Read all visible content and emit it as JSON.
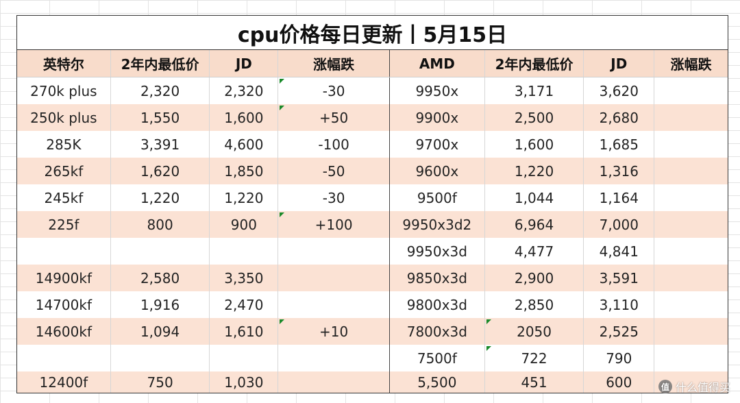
{
  "title": "cpu价格每日更新丨5月15日",
  "headers": [
    "英特尔",
    "2年内最低价",
    "JD",
    "涨幅跌",
    "AMD",
    "2年内最低价",
    "JD",
    "涨幅跌"
  ],
  "rows": [
    {
      "intel_model": "270k plus",
      "intel_low": "2,320",
      "intel_jd": "2,320",
      "intel_change": "-30",
      "amd_model": "9950x",
      "amd_low": "3,171",
      "amd_jd": "3,620",
      "amd_change": ""
    },
    {
      "intel_model": "250k plus",
      "intel_low": "1,550",
      "intel_jd": "1,600",
      "intel_change": "+50",
      "amd_model": "9900x",
      "amd_low": "2,500",
      "amd_jd": "2,680",
      "amd_change": ""
    },
    {
      "intel_model": "285K",
      "intel_low": "3,391",
      "intel_jd": "4,600",
      "intel_change": "-100",
      "amd_model": "9700x",
      "amd_low": "1,600",
      "amd_jd": "1,685",
      "amd_change": ""
    },
    {
      "intel_model": "265kf",
      "intel_low": "1,620",
      "intel_jd": "1,850",
      "intel_change": "-50",
      "amd_model": "9600x",
      "amd_low": "1,220",
      "amd_jd": "1,316",
      "amd_change": ""
    },
    {
      "intel_model": "245kf",
      "intel_low": "1,220",
      "intel_jd": "1,220",
      "intel_change": "-30",
      "amd_model": "9500f",
      "amd_low": "1,044",
      "amd_jd": "1,164",
      "amd_change": ""
    },
    {
      "intel_model": "225f",
      "intel_low": "800",
      "intel_jd": "900",
      "intel_change": "+100",
      "amd_model": "9950x3d2",
      "amd_low": "6,964",
      "amd_jd": "7,000",
      "amd_change": ""
    },
    {
      "intel_model": "",
      "intel_low": "",
      "intel_jd": "",
      "intel_change": "",
      "amd_model": "9950x3d",
      "amd_low": "4,477",
      "amd_jd": "4,841",
      "amd_change": ""
    },
    {
      "intel_model": "14900kf",
      "intel_low": "2,580",
      "intel_jd": "3,350",
      "intel_change": "",
      "amd_model": "9850x3d",
      "amd_low": "2,900",
      "amd_jd": "3,591",
      "amd_change": ""
    },
    {
      "intel_model": "14700kf",
      "intel_low": "1,916",
      "intel_jd": "2,470",
      "intel_change": "",
      "amd_model": "9800x3d",
      "amd_low": "2,850",
      "amd_jd": "3,110",
      "amd_change": ""
    },
    {
      "intel_model": "14600kf",
      "intel_low": "1,094",
      "intel_jd": "1,610",
      "intel_change": "+10",
      "amd_model": "7800x3d",
      "amd_low": "2050",
      "amd_jd": "2,525",
      "amd_change": ""
    },
    {
      "intel_model": "",
      "intel_low": "",
      "intel_jd": "",
      "intel_change": "",
      "amd_model": "7500f",
      "amd_low": "722",
      "amd_jd": "790",
      "amd_change": ""
    },
    {
      "intel_model": "12400f",
      "intel_low": "750",
      "intel_jd": "1,030",
      "intel_change": "",
      "amd_model": "5,500",
      "amd_low": "451",
      "amd_jd": "600",
      "amd_change": ""
    }
  ],
  "watermark": {
    "logo_text": "值",
    "text": "什么值得买"
  }
}
